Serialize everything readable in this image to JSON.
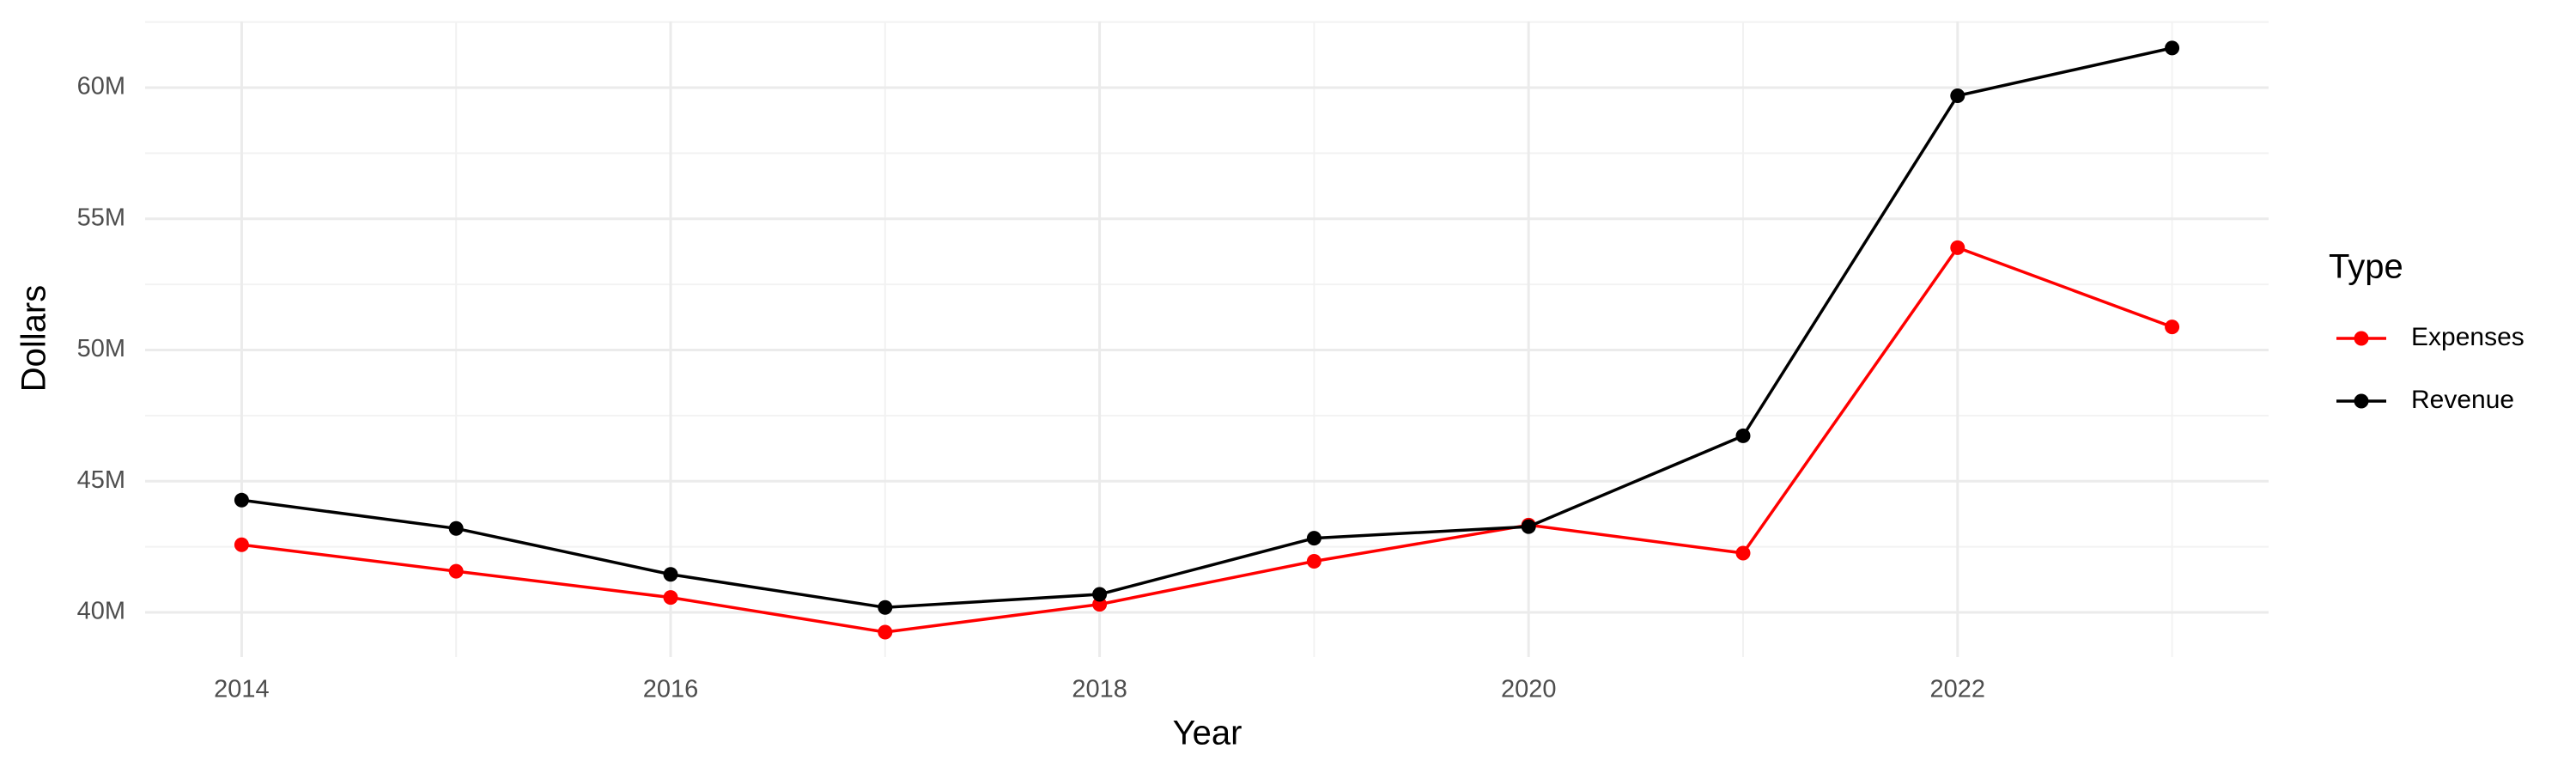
{
  "chart_data": {
    "type": "line",
    "x_label": "Year",
    "y_label": "Dollars",
    "legend_title": "Type",
    "x": [
      2014,
      2015,
      2016,
      2017,
      2018,
      2019,
      2020,
      2021,
      2022,
      2023
    ],
    "series": [
      {
        "name": "Expenses",
        "color": "#ff0000",
        "values": [
          42580000,
          41570000,
          40570000,
          39250000,
          40310000,
          41950000,
          43330000,
          42260000,
          53900000,
          50880000
        ]
      },
      {
        "name": "Revenue",
        "color": "#000000",
        "values": [
          44280000,
          43200000,
          41450000,
          40190000,
          40690000,
          42830000,
          43270000,
          46730000,
          59690000,
          61510000
        ]
      }
    ],
    "xlim": [
      2013.55,
      2023.45
    ],
    "xticks": [
      2014,
      2016,
      2018,
      2020,
      2022
    ],
    "ylim": [
      38300000,
      62520000
    ],
    "yticks": [
      {
        "value": 40000000,
        "label": "40M"
      },
      {
        "value": 45000000,
        "label": "45M"
      },
      {
        "value": 50000000,
        "label": "50M"
      },
      {
        "value": 55000000,
        "label": "55M"
      },
      {
        "value": 60000000,
        "label": "60M"
      }
    ],
    "grid": true,
    "legend": "right"
  }
}
